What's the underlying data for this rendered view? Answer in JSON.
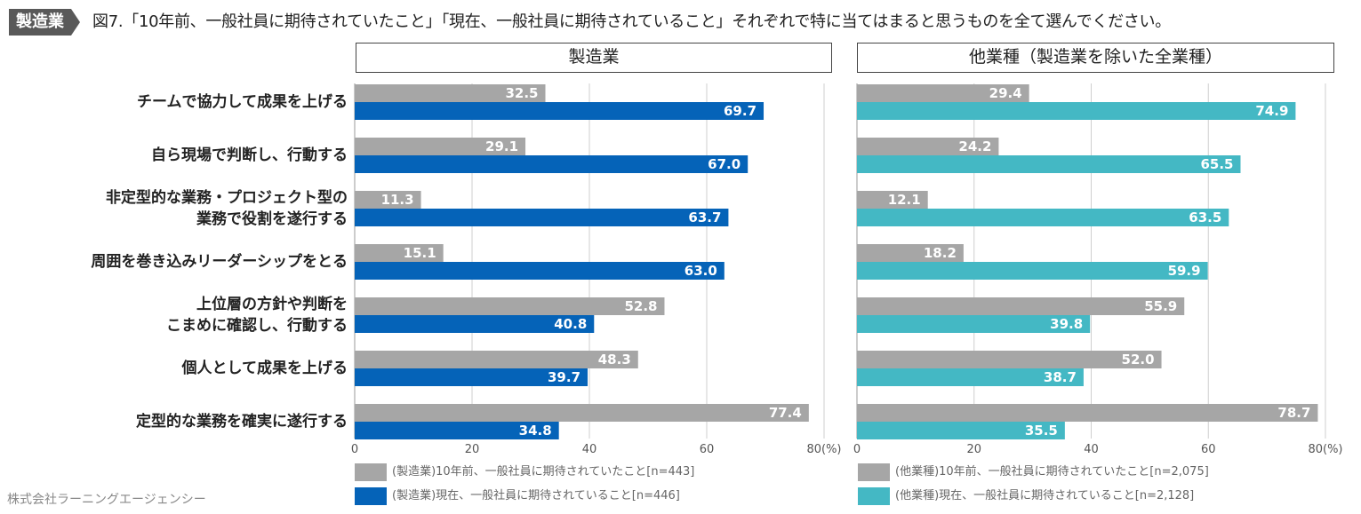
{
  "header": {
    "tag": "製造業",
    "title": "図7.「10年前、一般社員に期待されていたこと」「現在、一般社員に期待されていること」それぞれで特に当てはまると思うものを全て選んでください。"
  },
  "footer": "株式会社ラーニングエージェンシー",
  "colors": {
    "past": "#a6a6a6",
    "mfgNow": "#0563b8",
    "otherNow": "#44b8c4"
  },
  "categories": [
    {
      "lines": [
        "チームで協力して成果を上げる"
      ]
    },
    {
      "lines": [
        "自ら現場で判断し、行動する"
      ]
    },
    {
      "lines": [
        "非定型的な業務・プロジェクト型の",
        "業務で役割を遂行する"
      ]
    },
    {
      "lines": [
        "周囲を巻き込みリーダーシップをとる"
      ]
    },
    {
      "lines": [
        "上位層の方針や判断を",
        "こまめに確認し、行動する"
      ]
    },
    {
      "lines": [
        "個人として成果を上げる"
      ]
    },
    {
      "lines": [
        "定型的な業務を確実に遂行する"
      ]
    }
  ],
  "chart_data": [
    {
      "type": "bar",
      "orientation": "horizontal",
      "title": "製造業",
      "categories": [
        "チームで協力して成果を上げる",
        "自ら現場で判断し、行動する",
        "非定型的な業務・プロジェクト型の業務で役割を遂行する",
        "周囲を巻き込みリーダーシップをとる",
        "上位層の方針や判断をこまめに確認し、行動する",
        "個人として成果を上げる",
        "定型的な業務を確実に遂行する"
      ],
      "series": [
        {
          "name": "(製造業)10年前、一般社員に期待されていたこと[n=443]",
          "values": [
            32.5,
            29.1,
            11.3,
            15.1,
            52.8,
            48.3,
            77.4
          ]
        },
        {
          "name": "(製造業)現在、一般社員に期待されていること[n=446]",
          "values": [
            69.7,
            67.0,
            63.7,
            63.0,
            40.8,
            39.7,
            34.8
          ]
        }
      ],
      "xlim": [
        0,
        80
      ],
      "xticks": [
        "0",
        "20",
        "40",
        "60",
        "80(%)"
      ]
    },
    {
      "type": "bar",
      "orientation": "horizontal",
      "title": "他業種（製造業を除いた全業種）",
      "categories": [
        "チームで協力して成果を上げる",
        "自ら現場で判断し、行動する",
        "非定型的な業務・プロジェクト型の業務で役割を遂行する",
        "周囲を巻き込みリーダーシップをとる",
        "上位層の方針や判断をこまめに確認し、行動する",
        "個人として成果を上げる",
        "定型的な業務を確実に遂行する"
      ],
      "series": [
        {
          "name": "(他業種)10年前、一般社員に期待されていたこと[n=2,075]",
          "values": [
            29.4,
            24.2,
            12.1,
            18.2,
            55.9,
            52.0,
            78.7
          ]
        },
        {
          "name": "(他業種)現在、一般社員に期待されていること[n=2,128]",
          "values": [
            74.9,
            65.5,
            63.5,
            59.9,
            39.8,
            38.7,
            35.5
          ]
        }
      ],
      "xlim": [
        0,
        80
      ],
      "xticks": [
        "0",
        "20",
        "40",
        "60",
        "80(%)"
      ]
    }
  ]
}
